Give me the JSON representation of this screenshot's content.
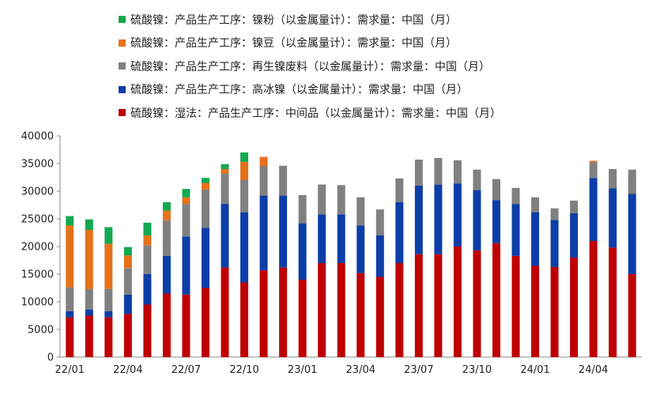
{
  "chart_data": {
    "type": "bar",
    "stacked": true,
    "legend_position": "top",
    "grid": false,
    "ylim": [
      0,
      40000
    ],
    "yticks": [
      0,
      5000,
      10000,
      15000,
      20000,
      25000,
      30000,
      35000,
      40000
    ],
    "x_tick_labels": [
      "22/01",
      "22/04",
      "22/07",
      "22/10",
      "23/01",
      "23/04",
      "23/07",
      "23/10",
      "24/01",
      "24/04"
    ],
    "categories": [
      "22/01",
      "22/02",
      "22/03",
      "22/04",
      "22/05",
      "22/06",
      "22/07",
      "22/08",
      "22/09",
      "22/10",
      "22/11",
      "22/12",
      "23/01",
      "23/02",
      "23/03",
      "23/04",
      "23/05",
      "23/06",
      "23/07",
      "23/08",
      "23/09",
      "23/10",
      "23/11",
      "23/12",
      "24/01",
      "24/02",
      "24/03",
      "24/04",
      "24/05",
      "24/06"
    ],
    "series": [
      {
        "name": "硫酸镍：湿法：产品生产工序：中间品（以金属量计）：需求量：中国（月）",
        "color": "#C00000",
        "values": [
          7200,
          7500,
          7200,
          7800,
          9500,
          11500,
          11300,
          12500,
          16200,
          13500,
          15700,
          16200,
          14000,
          17000,
          17000,
          15200,
          14500,
          17000,
          18600,
          18600,
          20000,
          19300,
          20600,
          18300,
          16500,
          16300,
          18000,
          21000,
          19800,
          15000
        ]
      },
      {
        "name": "硫酸镍：产品生产工序：高冰镍（以金属量计）：需求量：中国（月）",
        "color": "#0B3EA8",
        "values": [
          1100,
          1100,
          1100,
          3500,
          5500,
          6800,
          10500,
          10900,
          11500,
          12700,
          13500,
          13000,
          10200,
          8800,
          8800,
          8600,
          7500,
          11000,
          12400,
          12600,
          11400,
          10900,
          7800,
          9400,
          9700,
          8500,
          8000,
          11400,
          10700,
          14500
        ]
      },
      {
        "name": "硫酸镍：产品生产工序：再生镍废料（以金属量计）：需求量：中国（月）",
        "color": "#808080",
        "values": [
          4300,
          3700,
          4000,
          4800,
          5200,
          6400,
          5900,
          6900,
          5500,
          5800,
          5300,
          5400,
          5100,
          5400,
          5300,
          5100,
          4700,
          4300,
          4700,
          4800,
          4200,
          3700,
          3800,
          2900,
          2700,
          2100,
          2300,
          2800,
          3500,
          4400
        ]
      },
      {
        "name": "硫酸镍：产品生产工序：镍豆（以金属量计）：需求量：中国（月）",
        "color": "#E5711B",
        "values": [
          11200,
          10700,
          8200,
          2300,
          1800,
          1800,
          1200,
          1200,
          800,
          3300,
          1700,
          0,
          0,
          0,
          0,
          0,
          0,
          0,
          0,
          0,
          0,
          0,
          0,
          0,
          0,
          0,
          0,
          300,
          0,
          0
        ]
      },
      {
        "name": "硫酸镍：产品生产工序：镍粉（以金属量计）：需求量：中国（月）",
        "color": "#12A950",
        "values": [
          1700,
          1900,
          3000,
          1500,
          2300,
          1500,
          1500,
          900,
          900,
          1700,
          0,
          0,
          0,
          0,
          0,
          0,
          0,
          0,
          0,
          0,
          0,
          0,
          0,
          0,
          0,
          0,
          0,
          0,
          0,
          0
        ]
      }
    ]
  },
  "legend": [
    {
      "label": "硫酸镍：产品生产工序：镍粉（以金属量计）：需求量：中国（月）",
      "color": "#12A950"
    },
    {
      "label": "硫酸镍：产品生产工序：镍豆（以金属量计）：需求量：中国（月）",
      "color": "#E5711B"
    },
    {
      "label": "硫酸镍：产品生产工序：再生镍废料（以金属量计）：需求量：中国（月）",
      "color": "#808080"
    },
    {
      "label": "硫酸镍：产品生产工序：高冰镍（以金属量计）：需求量：中国（月）",
      "color": "#0B3EA8"
    },
    {
      "label": "硫酸镍：湿法：产品生产工序：中间品（以金属量计）：需求量：中国（月）",
      "color": "#C00000"
    }
  ]
}
